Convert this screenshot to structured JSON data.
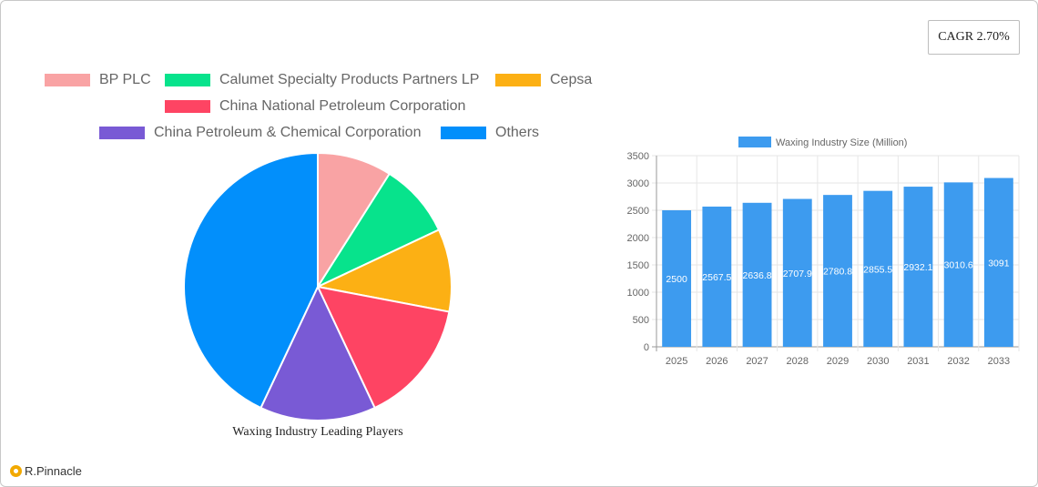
{
  "cagr_badge": "CAGR 2.70%",
  "brand": "R.Pinnacle",
  "chart_data": [
    {
      "type": "pie",
      "title": "Waxing Industry Leading Players",
      "legend_position": "top",
      "categories": [
        "BP PLC",
        "Calumet Specialty Products Partners LP",
        "Cepsa",
        "China National Petroleum Corporation",
        "China Petroleum & Chemical Corporation",
        "Others"
      ],
      "values": [
        9,
        9,
        10,
        15,
        14,
        43
      ],
      "colors": [
        "#f9a3a4",
        "#07e38c",
        "#fcb014",
        "#fe4463",
        "#795ad5",
        "#028ffb"
      ]
    },
    {
      "type": "bar",
      "title": "",
      "xlabel": "",
      "ylabel": "",
      "legend_position": "top",
      "series": [
        {
          "name": "Waxing Industry Size (Million)",
          "values": [
            2500,
            2567.5,
            2636.8,
            2707.9,
            2780.8,
            2855.5,
            2932.1,
            3010.6,
            3091
          ],
          "value_labels": [
            "2500",
            "2567.5",
            "2636.8",
            "2707.9",
            "2780.8",
            "2855.5",
            "2932.1",
            "3010.6",
            "3091"
          ],
          "color": "#3d9bef"
        }
      ],
      "categories": [
        "2025",
        "2026",
        "2027",
        "2028",
        "2029",
        "2030",
        "2031",
        "2032",
        "2033"
      ],
      "ylim": [
        0,
        3500
      ],
      "yticks": [
        "0",
        "500",
        "1000",
        "1500",
        "2000",
        "2500",
        "3000",
        "3500"
      ],
      "grid": true
    }
  ]
}
